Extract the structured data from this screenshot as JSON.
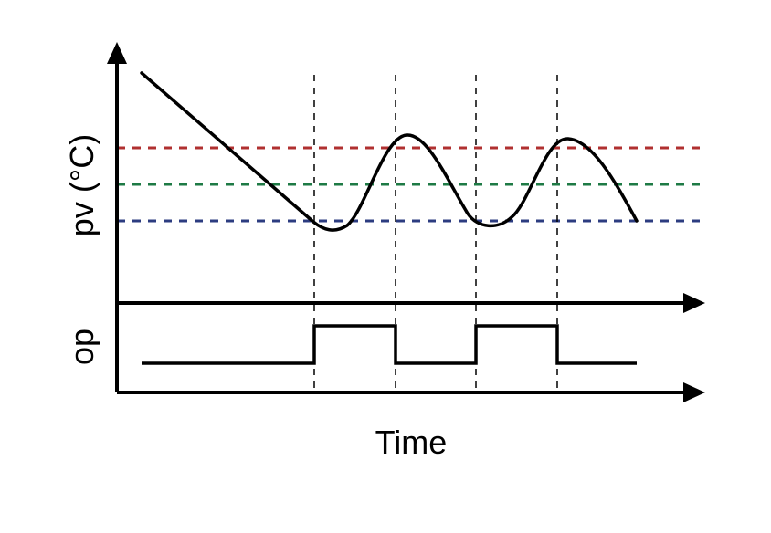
{
  "labels": {
    "pv_axis": "pv (°C)",
    "op_axis": "op",
    "time_axis": "Time"
  },
  "colors": {
    "axis": "#000000",
    "curve": "#000000",
    "upper_threshold": "#b03030",
    "setpoint": "#1e7a45",
    "lower_threshold": "#2c3c80",
    "switch_marker": "#000000"
  },
  "legend": []
}
